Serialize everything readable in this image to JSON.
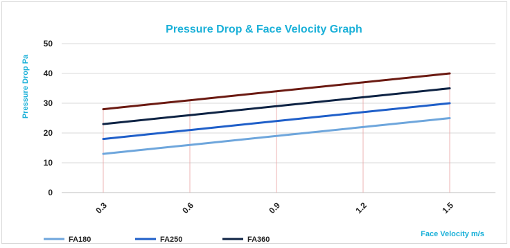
{
  "chart_data": {
    "type": "line",
    "title": "Pressure Drop  &  Face Velocity  Graph",
    "xlabel": "Face Velocity  m/s",
    "ylabel": "Pressure Drop  Pa",
    "categories": [
      "0.3",
      "0.6",
      "0.9",
      "1.2",
      "1.5"
    ],
    "ylim": [
      0,
      50
    ],
    "yticks": [
      "0",
      "10",
      "20",
      "30",
      "40",
      "50"
    ],
    "grid": true,
    "legend_position": "bottom",
    "series": [
      {
        "name": "FA180",
        "values": [
          13,
          16,
          19,
          22,
          25
        ],
        "color": "#6ea6dc"
      },
      {
        "name": "FA250",
        "values": [
          18,
          21,
          24,
          27,
          30
        ],
        "color": "#1f5fc9"
      },
      {
        "name": "FA360",
        "values": [
          23,
          26,
          29,
          32,
          35
        ],
        "color": "#0e2344"
      },
      {
        "name": "",
        "values": [
          28,
          31,
          34,
          37,
          40
        ],
        "color": "#6b1a12"
      }
    ],
    "colors": {
      "title": "#1ab0d8",
      "grid": "#d9d9d9",
      "drop_lines": "#e8a0a0"
    }
  }
}
